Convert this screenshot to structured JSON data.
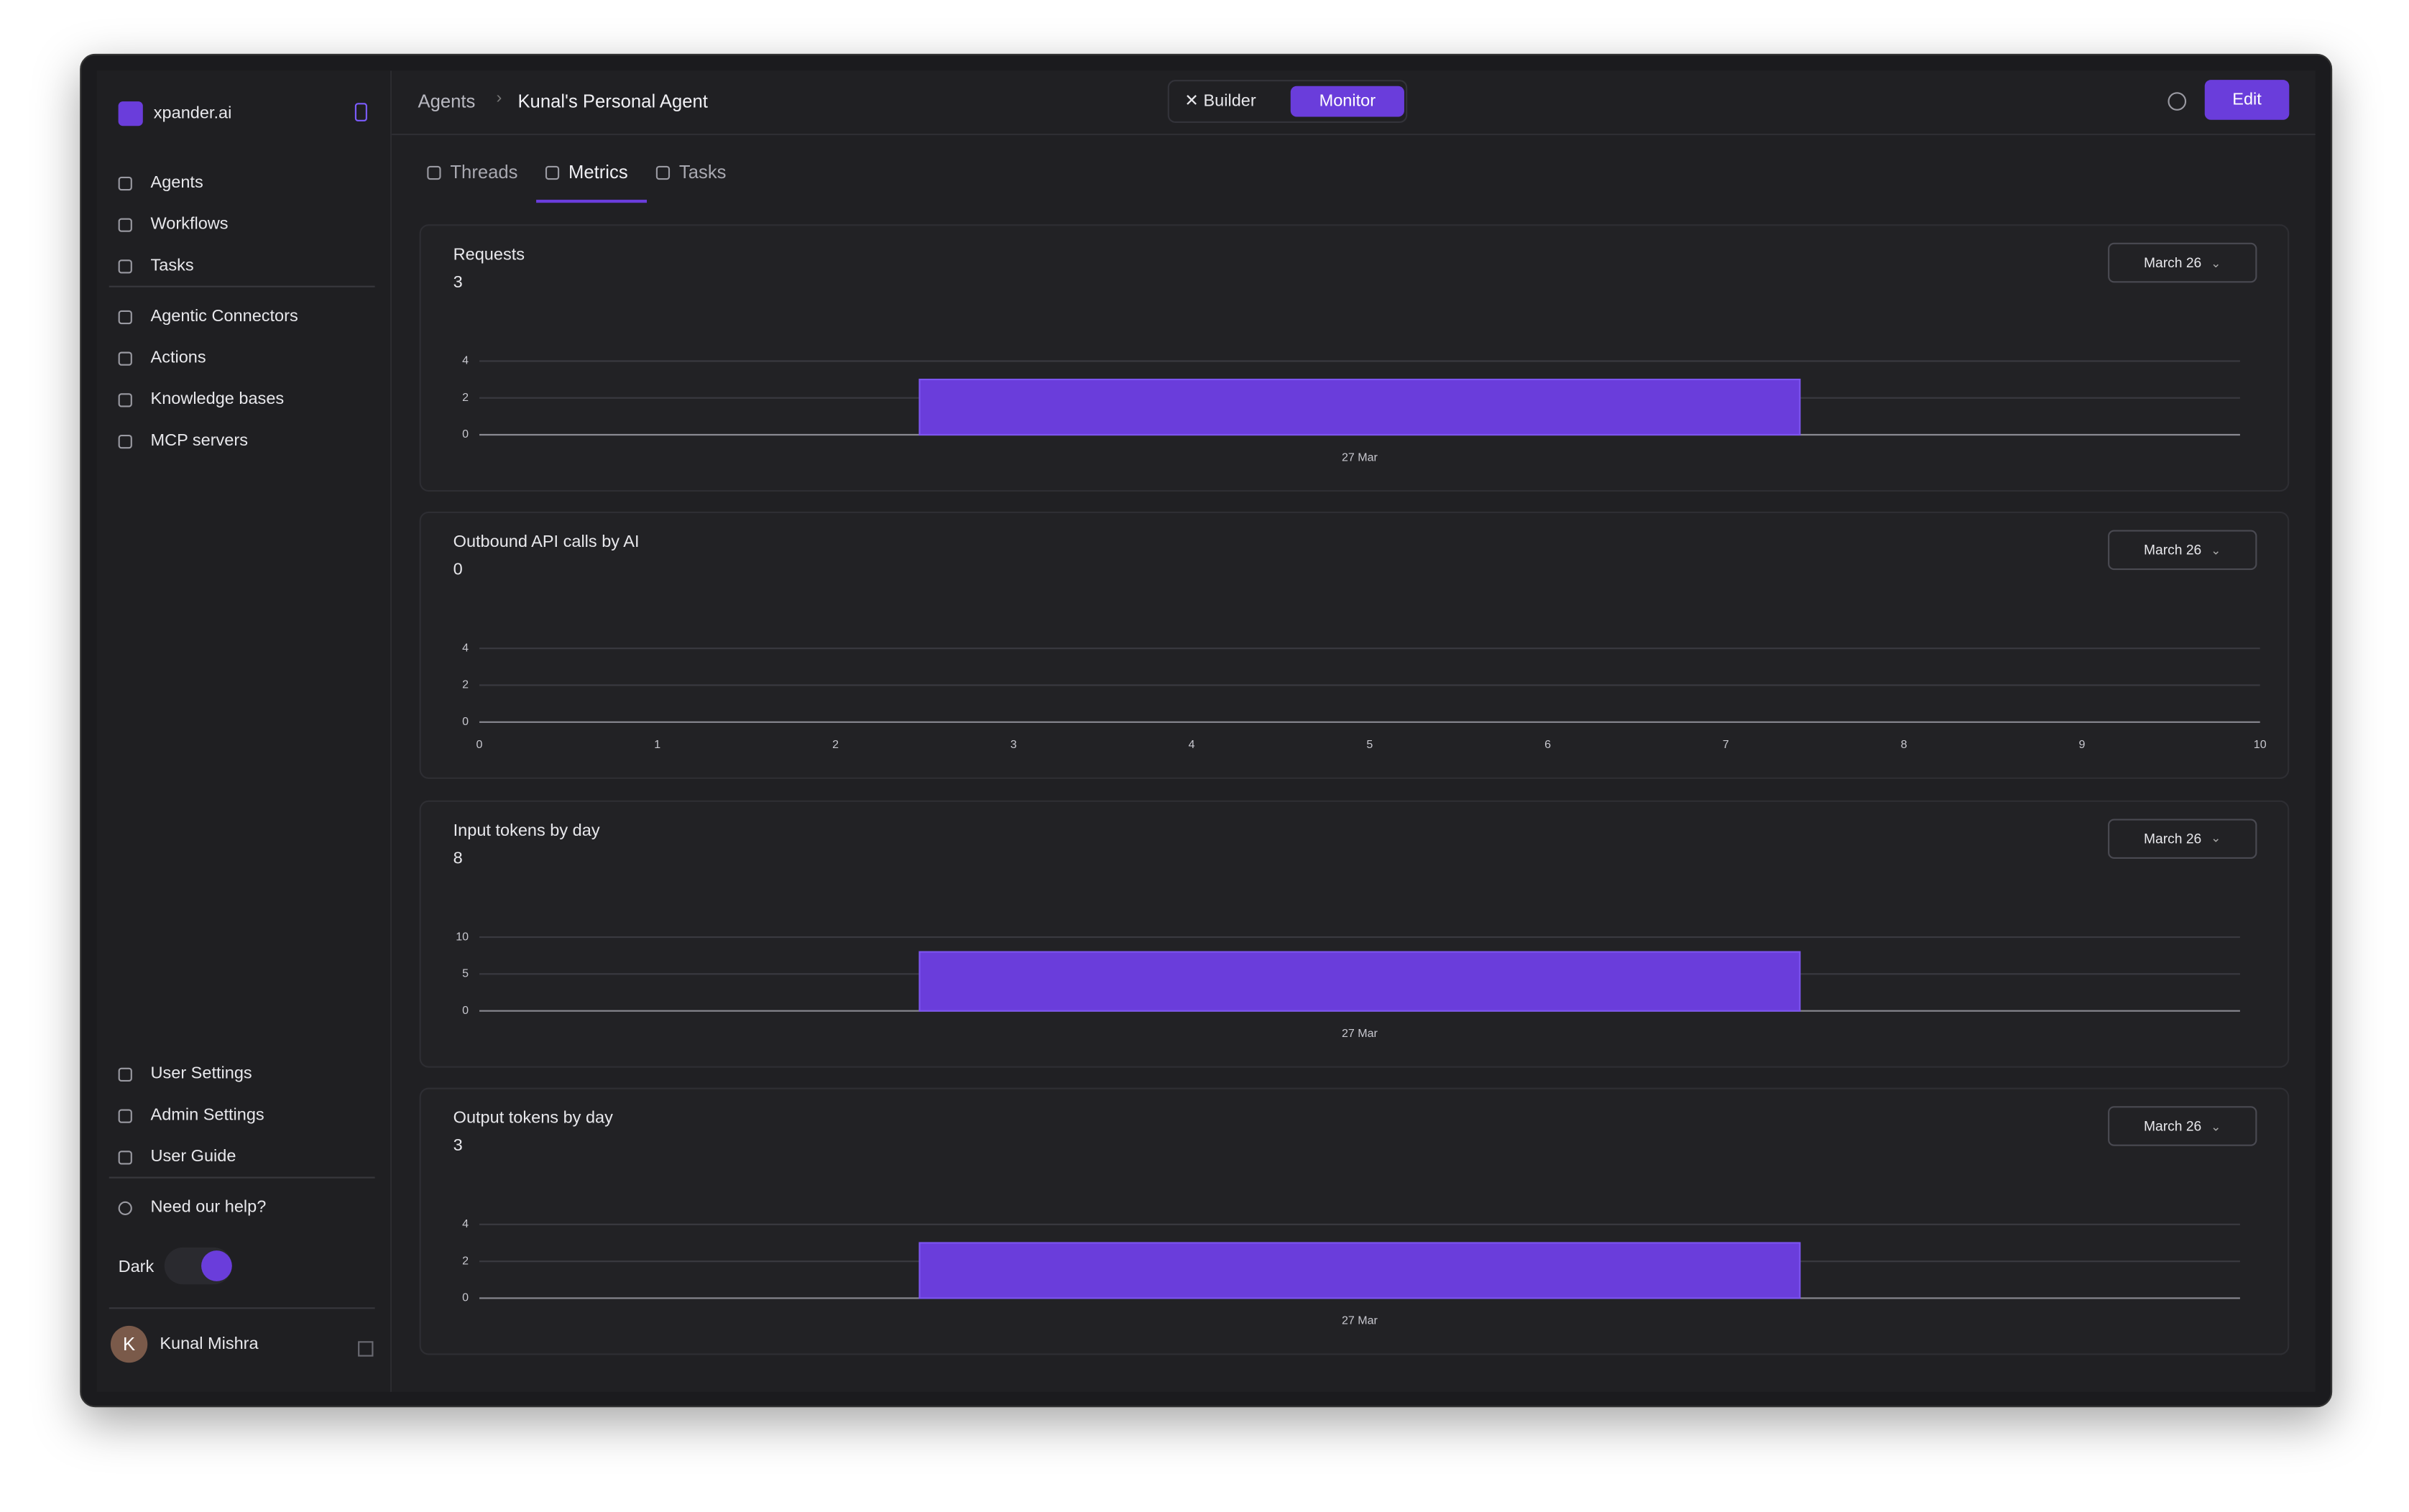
{
  "app": {
    "brand": "xpander.ai",
    "nav": [
      "Agents",
      "Workflows",
      "Tasks"
    ],
    "nav2": [
      "Agentic Connectors",
      "Actions",
      "Knowledge bases",
      "MCP servers"
    ],
    "footer_nav": [
      "User Settings",
      "Admin Settings",
      "User Guide"
    ],
    "help": "Need our help?",
    "theme_label": "Dark",
    "user": {
      "initial": "K",
      "name": "Kunal Mishra"
    }
  },
  "header": {
    "breadcrumb": [
      "Agents",
      "Kunal's Personal Agent"
    ],
    "modes": [
      "Builder",
      "Monitor"
    ],
    "edit": "Edit"
  },
  "tabs": [
    "Threads",
    "Metrics",
    "Tasks"
  ],
  "chart_data": [
    {
      "type": "bar",
      "title": "Requests",
      "total": "3",
      "date_button": "March 26",
      "categories": [
        "27 Mar"
      ],
      "values": [
        3
      ],
      "ylim": [
        0,
        4
      ],
      "yticks": [
        0,
        2,
        4
      ],
      "color": "#6a3ddb",
      "grid": true
    },
    {
      "type": "bar",
      "title": "Outbound API calls by AI",
      "total": "0",
      "date_button": "March 26",
      "x": [],
      "values": [],
      "xlim": [
        0,
        10
      ],
      "xticks": [
        0,
        1,
        2,
        3,
        4,
        5,
        6,
        7,
        8,
        9,
        10
      ],
      "ylim": [
        0,
        4
      ],
      "yticks": [
        0,
        2,
        4
      ],
      "color": "#6a3ddb",
      "grid": true
    },
    {
      "type": "bar",
      "title": "Input tokens by day",
      "total": "8",
      "date_button": "March 26",
      "categories": [
        "27 Mar"
      ],
      "values": [
        8
      ],
      "ylim": [
        0,
        10
      ],
      "yticks": [
        0,
        5,
        10
      ],
      "color": "#6a3ddb",
      "grid": true
    },
    {
      "type": "bar",
      "title": "Output tokens by day",
      "total": "3",
      "date_button": "March 26",
      "categories": [
        "27 Mar"
      ],
      "values": [
        3
      ],
      "ylim": [
        0,
        4
      ],
      "yticks": [
        0,
        2,
        4
      ],
      "color": "#6a3ddb",
      "grid": true
    }
  ]
}
